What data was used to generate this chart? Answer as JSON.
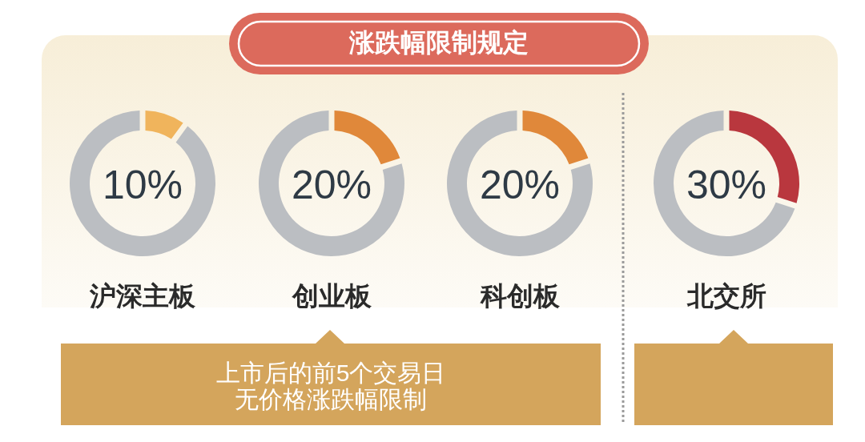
{
  "chart_data": [
    {
      "type": "other",
      "title": "涨跌幅限制规定"
    },
    {
      "type": "donut",
      "title": "沪深主板",
      "categories": [
        null,
        null
      ],
      "values": [
        10,
        90
      ],
      "colors": [
        "#f0b45c",
        "#bbbec2"
      ],
      "annotations": [
        "10%"
      ]
    },
    {
      "type": "donut",
      "title": "创业板",
      "categories": [
        null,
        null
      ],
      "values": [
        20,
        80
      ],
      "colors": [
        "#e0883a",
        "#bbbec2"
      ],
      "annotations": [
        "20%"
      ]
    },
    {
      "type": "donut",
      "title": "科创板",
      "categories": [
        null,
        null
      ],
      "values": [
        20,
        80
      ],
      "colors": [
        "#e0883a",
        "#bbbec2"
      ],
      "annotations": [
        "20%"
      ]
    },
    {
      "type": "donut",
      "title": "北交所",
      "categories": [
        null,
        null
      ],
      "values": [
        30,
        70
      ],
      "colors": [
        "#b9373e",
        "#bbbec2"
      ],
      "annotations": [
        "30%"
      ]
    },
    {
      "type": "other",
      "annotations": [
        "上市后的前5个交易日无价格涨跌幅限制"
      ]
    }
  ]
}
